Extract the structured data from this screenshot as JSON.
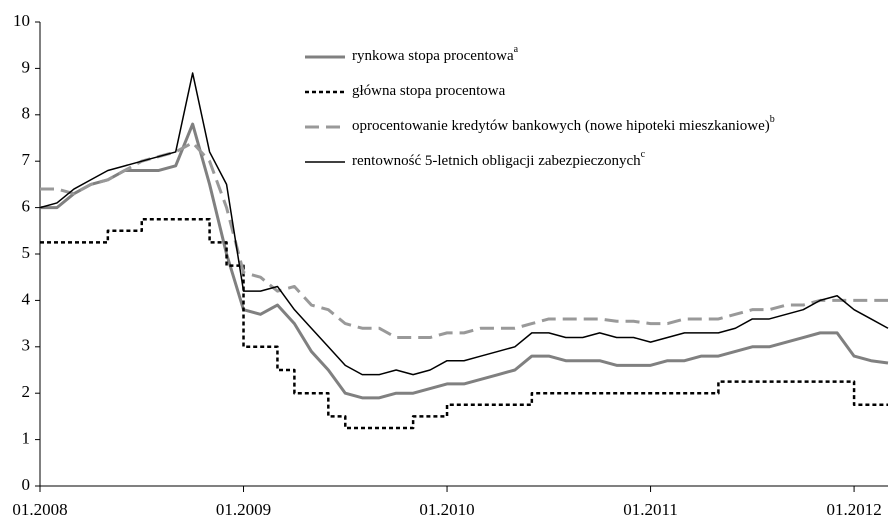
{
  "chart_data": {
    "type": "line",
    "x": [
      "2008-01",
      "2008-02",
      "2008-03",
      "2008-04",
      "2008-05",
      "2008-06",
      "2008-07",
      "2008-08",
      "2008-09",
      "2008-10",
      "2008-11",
      "2008-12",
      "2009-01",
      "2009-02",
      "2009-03",
      "2009-04",
      "2009-05",
      "2009-06",
      "2009-07",
      "2009-08",
      "2009-09",
      "2009-10",
      "2009-11",
      "2009-12",
      "2010-01",
      "2010-02",
      "2010-03",
      "2010-04",
      "2010-05",
      "2010-06",
      "2010-07",
      "2010-08",
      "2010-09",
      "2010-10",
      "2010-11",
      "2010-12",
      "2011-01",
      "2011-02",
      "2011-03",
      "2011-04",
      "2011-05",
      "2011-06",
      "2011-07",
      "2011-08",
      "2011-09",
      "2011-10",
      "2011-11",
      "2011-12",
      "2012-01",
      "2012-02",
      "2012-03"
    ],
    "series": [
      {
        "name": "rynkowa stopa procentowa",
        "superscript": "a",
        "color": "#808080",
        "style": "solid-thick",
        "values": [
          6.0,
          6.0,
          6.3,
          6.5,
          6.6,
          6.8,
          6.8,
          6.8,
          6.9,
          7.8,
          6.5,
          5.0,
          3.8,
          3.7,
          3.9,
          3.5,
          2.9,
          2.5,
          2.0,
          1.9,
          1.9,
          2.0,
          2.0,
          2.1,
          2.2,
          2.2,
          2.3,
          2.4,
          2.5,
          2.8,
          2.8,
          2.7,
          2.7,
          2.7,
          2.6,
          2.6,
          2.6,
          2.7,
          2.7,
          2.8,
          2.8,
          2.9,
          3.0,
          3.0,
          3.1,
          3.2,
          3.3,
          3.3,
          2.8,
          2.7,
          2.65
        ]
      },
      {
        "name": "główna stopa procentowa",
        "color": "#000000",
        "style": "dotted-step",
        "values": [
          5.25,
          5.25,
          5.25,
          5.25,
          5.5,
          5.5,
          5.75,
          5.75,
          5.75,
          5.75,
          5.25,
          4.75,
          3.0,
          3.0,
          2.5,
          2.0,
          2.0,
          1.5,
          1.25,
          1.25,
          1.25,
          1.25,
          1.5,
          1.5,
          1.75,
          1.75,
          1.75,
          1.75,
          1.75,
          2.0,
          2.0,
          2.0,
          2.0,
          2.0,
          2.0,
          2.0,
          2.0,
          2.0,
          2.0,
          2.0,
          2.25,
          2.25,
          2.25,
          2.25,
          2.25,
          2.25,
          2.25,
          2.25,
          1.75,
          1.75,
          1.75
        ]
      },
      {
        "name": "oprocentowanie kredytów bankowych (nowe hipoteki  mieszkaniowe)",
        "superscript": "b",
        "color": "#999999",
        "style": "dashed",
        "values": [
          6.4,
          6.4,
          6.3,
          6.5,
          6.6,
          6.8,
          7.0,
          7.1,
          7.2,
          7.4,
          7.0,
          6.0,
          4.6,
          4.5,
          4.2,
          4.3,
          3.9,
          3.8,
          3.5,
          3.4,
          3.4,
          3.2,
          3.2,
          3.2,
          3.3,
          3.3,
          3.4,
          3.4,
          3.4,
          3.5,
          3.6,
          3.6,
          3.6,
          3.6,
          3.55,
          3.55,
          3.5,
          3.5,
          3.6,
          3.6,
          3.6,
          3.7,
          3.8,
          3.8,
          3.9,
          3.9,
          4.0,
          4.0,
          4.0,
          4.0,
          4.0
        ]
      },
      {
        "name": "rentowność 5-letnich obligacji zabezpieczonych",
        "superscript": "c",
        "color": "#000000",
        "style": "solid",
        "values": [
          6.0,
          6.1,
          6.4,
          6.6,
          6.8,
          6.9,
          7.0,
          7.1,
          7.2,
          8.9,
          7.2,
          6.5,
          4.2,
          4.2,
          4.3,
          3.8,
          3.4,
          3.0,
          2.6,
          2.4,
          2.4,
          2.5,
          2.4,
          2.5,
          2.7,
          2.7,
          2.8,
          2.9,
          3.0,
          3.3,
          3.3,
          3.2,
          3.2,
          3.3,
          3.2,
          3.2,
          3.1,
          3.2,
          3.3,
          3.3,
          3.3,
          3.4,
          3.6,
          3.6,
          3.7,
          3.8,
          4.0,
          4.1,
          3.8,
          3.6,
          3.4
        ]
      }
    ],
    "xlim": [
      "2008-01",
      "2012-03"
    ],
    "xticks": [
      {
        "value": "2008-01",
        "label": "01.2008"
      },
      {
        "value": "2009-01",
        "label": "01.2009"
      },
      {
        "value": "2010-01",
        "label": "01.2010"
      },
      {
        "value": "2011-01",
        "label": "01.2011"
      },
      {
        "value": "2012-01",
        "label": "01.2012"
      }
    ],
    "ylim": [
      0,
      10
    ],
    "yticks": [
      0,
      1,
      2,
      3,
      4,
      5,
      6,
      7,
      8,
      9,
      10
    ],
    "grid": false,
    "legend": "top-right"
  }
}
